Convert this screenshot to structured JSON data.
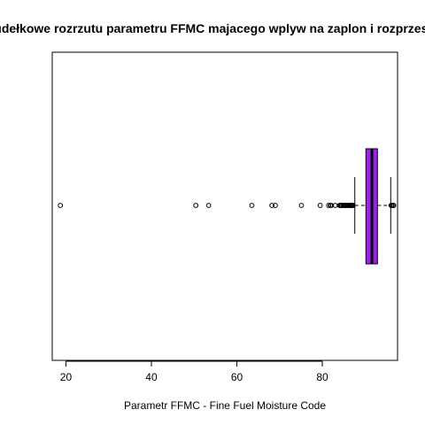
{
  "chart_data": {
    "type": "boxplot",
    "orientation": "horizontal",
    "title": "Wykres pudełkowe rozrzutu parametru FFMC majacego wplyw na zaplon i rozprzestrzenianie",
    "xlabel": "Parametr FFMC - Fine Fuel Moisture Code",
    "ylabel": "",
    "xlim": [
      16.8,
      97.6
    ],
    "x_ticks": [
      20,
      40,
      60,
      80
    ],
    "x_tick_labels": [
      "20",
      "40",
      "60",
      "80"
    ],
    "grid": false,
    "box": {
      "min": 87.6,
      "q1": 90.2,
      "median": 91.6,
      "q3": 92.9,
      "max": 96.0
    },
    "outliers": [
      18.7,
      50.4,
      53.4,
      63.5,
      68.2,
      69.0,
      75.1,
      79.5,
      81.5,
      81.9,
      82.1,
      83.0,
      84.0,
      84.2,
      84.4,
      84.6,
      84.9,
      85.1,
      85.3,
      85.4,
      85.6,
      85.8,
      85.9,
      86.2,
      86.3,
      86.5,
      86.6,
      86.8,
      86.9,
      87.1,
      87.2,
      96.1,
      96.2,
      96.3,
      96.6,
      96.7
    ],
    "colors": {
      "box_fill": "#a020f0",
      "box_border": "#000000",
      "median": "#000000"
    }
  }
}
